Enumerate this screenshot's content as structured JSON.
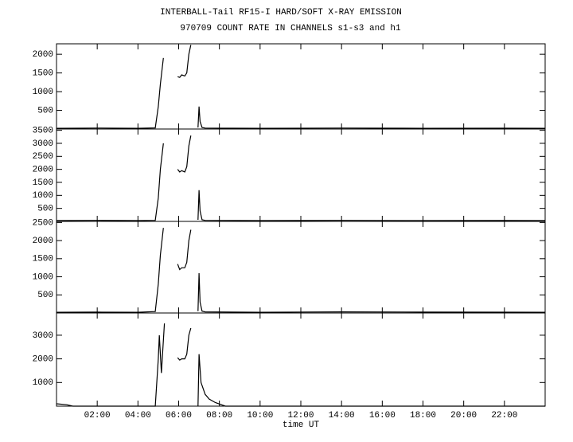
{
  "chart_data": [
    {
      "type": "line",
      "title": "INTERBALL-Tail RF15-I HARD/SOFT X-RAY EMISSION",
      "subtitle": "970709  COUNT RATE IN CHANNELS s1-s3 and h1",
      "xlim": [
        0,
        24
      ],
      "ylim": [
        0,
        2280
      ],
      "yticks": [
        500,
        1000,
        1500,
        2000
      ],
      "series": [
        {
          "color": "#000000",
          "x": [
            0,
            2,
            4,
            4.85,
            5.0,
            5.1,
            5.25,
            5.3,
            5.95,
            6.05,
            6.15,
            6.3,
            6.4,
            6.5,
            6.6,
            6.65,
            6.95,
            7.0,
            7.05,
            7.15,
            7.3,
            10,
            14,
            18,
            22,
            24
          ],
          "values": [
            20,
            25,
            20,
            30,
            600,
            1200,
            1900,
            null,
            1400,
            1380,
            1450,
            1420,
            1500,
            2000,
            2250,
            null,
            40,
            600,
            200,
            40,
            25,
            20,
            25,
            20,
            22,
            20
          ]
        }
      ]
    },
    {
      "type": "line",
      "xlim": [
        0,
        24
      ],
      "ylim": [
        0,
        3550
      ],
      "yticks": [
        500,
        1000,
        1500,
        2000,
        2500,
        3000,
        3500
      ],
      "series": [
        {
          "color": "#000000",
          "x": [
            0,
            2,
            4,
            4.85,
            5.0,
            5.1,
            5.25,
            5.3,
            5.95,
            6.05,
            6.15,
            6.3,
            6.4,
            6.5,
            6.6,
            6.65,
            6.95,
            7.0,
            7.05,
            7.15,
            7.3,
            10,
            14,
            18,
            22,
            24
          ],
          "values": [
            30,
            40,
            30,
            40,
            900,
            2000,
            3000,
            null,
            2000,
            1900,
            1950,
            1900,
            2100,
            2900,
            3300,
            null,
            60,
            1200,
            400,
            60,
            40,
            30,
            40,
            30,
            35,
            30
          ]
        }
      ]
    },
    {
      "type": "line",
      "xlim": [
        0,
        24
      ],
      "ylim": [
        0,
        2530
      ],
      "yticks": [
        500,
        1000,
        1500,
        2000,
        2500
      ],
      "series": [
        {
          "color": "#000000",
          "x": [
            0,
            2,
            4,
            4.85,
            5.0,
            5.1,
            5.25,
            5.3,
            5.95,
            6.05,
            6.15,
            6.3,
            6.4,
            6.5,
            6.6,
            6.65,
            6.95,
            7.0,
            7.05,
            7.15,
            7.3,
            10,
            14,
            18,
            22,
            24
          ],
          "values": [
            20,
            25,
            20,
            40,
            800,
            1600,
            2350,
            null,
            1350,
            1200,
            1250,
            1250,
            1400,
            2000,
            2300,
            null,
            50,
            1100,
            300,
            50,
            30,
            20,
            30,
            25,
            22,
            20
          ]
        }
      ]
    },
    {
      "type": "line",
      "xlabel": "time UT",
      "xlim": [
        0,
        24
      ],
      "ylim": [
        0,
        3940
      ],
      "yticks": [
        1000,
        2000,
        3000
      ],
      "xticks": [
        {
          "value": 2,
          "label": "02:00"
        },
        {
          "value": 4,
          "label": "04:00"
        },
        {
          "value": 6,
          "label": "06:00"
        },
        {
          "value": 8,
          "label": "08:00"
        },
        {
          "value": 10,
          "label": "10:00"
        },
        {
          "value": 12,
          "label": "12:00"
        },
        {
          "value": 14,
          "label": "14:00"
        },
        {
          "value": 16,
          "label": "16:00"
        },
        {
          "value": 18,
          "label": "18:00"
        },
        {
          "value": 20,
          "label": "20:00"
        },
        {
          "value": 22,
          "label": "22:00"
        }
      ],
      "series": [
        {
          "color": "#000000",
          "x": [
            0,
            0.5,
            0.8,
            2,
            4,
            4.85,
            5.0,
            5.05,
            5.15,
            5.3,
            5.35,
            5.95,
            6.05,
            6.15,
            6.3,
            6.4,
            6.5,
            6.6,
            6.65,
            6.95,
            7.0,
            7.1,
            7.3,
            7.5,
            7.8,
            8.3,
            10,
            14,
            18,
            22,
            24
          ],
          "values": [
            100,
            60,
            0,
            0,
            0,
            0,
            2000,
            3000,
            1400,
            3500,
            null,
            2050,
            1950,
            2000,
            2000,
            2200,
            3000,
            3300,
            null,
            0,
            2200,
            1000,
            500,
            300,
            150,
            0,
            0,
            0,
            0,
            0,
            0
          ]
        }
      ]
    }
  ]
}
